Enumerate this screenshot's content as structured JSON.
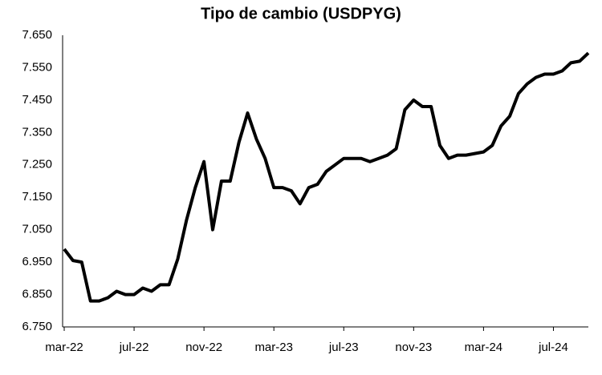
{
  "chart_data": {
    "type": "line",
    "title": "Tipo de cambio (USDPYG)",
    "categories": [
      "mar-22",
      null,
      null,
      null,
      null,
      null,
      null,
      null,
      "jul-22",
      null,
      null,
      null,
      null,
      null,
      null,
      null,
      "nov-22",
      null,
      null,
      null,
      null,
      null,
      null,
      null,
      "mar-23",
      null,
      null,
      null,
      null,
      null,
      null,
      null,
      "jul-23",
      null,
      null,
      null,
      null,
      null,
      null,
      null,
      "nov-23",
      null,
      null,
      null,
      null,
      null,
      null,
      null,
      "mar-24",
      null,
      null,
      null,
      null,
      null,
      null,
      null,
      "jul-24",
      null,
      null,
      null,
      null
    ],
    "values": [
      6990,
      6955,
      6950,
      6830,
      6830,
      6840,
      6860,
      6850,
      6850,
      6870,
      6860,
      6880,
      6880,
      6960,
      7080,
      7180,
      7260,
      7050,
      7200,
      7200,
      7320,
      7410,
      7330,
      7270,
      7180,
      7180,
      7170,
      7130,
      7180,
      7190,
      7230,
      7250,
      7270,
      7270,
      7270,
      7260,
      7270,
      7280,
      7300,
      7420,
      7450,
      7430,
      7430,
      7310,
      7270,
      7280,
      7280,
      7285,
      7290,
      7310,
      7370,
      7400,
      7470,
      7500,
      7520,
      7530,
      7530,
      7540,
      7565,
      7570,
      7595
    ],
    "color": "#000000",
    "ylim": [
      6750,
      7650
    ],
    "yticks": [
      {
        "value": 6750,
        "label": "6.750"
      },
      {
        "value": 6850,
        "label": "6.850"
      },
      {
        "value": 6950,
        "label": "6.950"
      },
      {
        "value": 7050,
        "label": "7.050"
      },
      {
        "value": 7150,
        "label": "7.150"
      },
      {
        "value": 7250,
        "label": "7.250"
      },
      {
        "value": 7350,
        "label": "7.350"
      },
      {
        "value": 7450,
        "label": "7.450"
      },
      {
        "value": 7550,
        "label": "7.550"
      },
      {
        "value": 7650,
        "label": "7.650"
      }
    ]
  }
}
